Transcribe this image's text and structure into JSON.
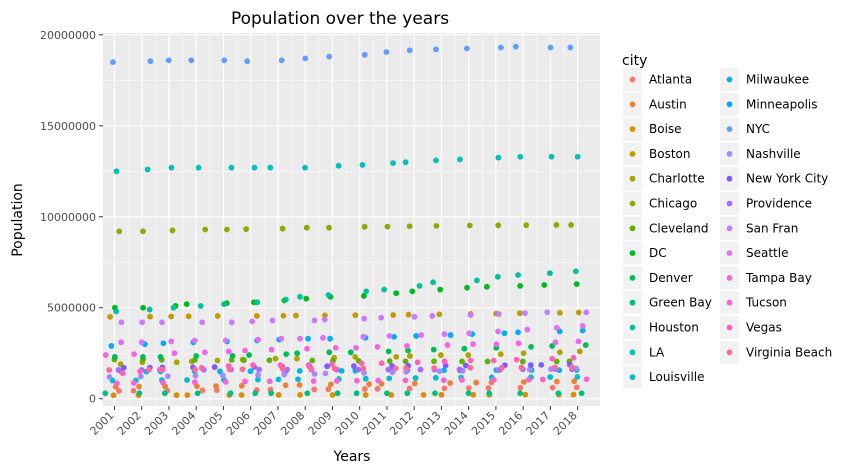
{
  "chart_data": {
    "type": "scatter",
    "title": "Population over the years",
    "xlabel": "Years",
    "ylabel": "Population",
    "legend_title": "city",
    "legend_position": "right",
    "grid": true,
    "background": "#ebebeb",
    "x_ticks": [
      "2001",
      "2002",
      "2003",
      "2004",
      "2005",
      "2006",
      "2007",
      "2008",
      "2009",
      "2010",
      "2011",
      "2012",
      "2013",
      "2014",
      "2015",
      "2016",
      "2017",
      "2018"
    ],
    "y_ticks": [
      {
        "value": 0,
        "label": "0"
      },
      {
        "value": 5000000,
        "label": "5000000"
      },
      {
        "value": 10000000,
        "label": "10000000"
      },
      {
        "value": 15000000,
        "label": "15000000"
      },
      {
        "value": 20000000,
        "label": "20000000"
      }
    ],
    "xlim": [
      2000.58,
      2018.82
    ],
    "ylim": [
      -400000,
      20100000
    ],
    "series": [
      {
        "name": "Atlanta",
        "color": "#F8766D",
        "values": [
          430000,
          440000,
          445000,
          455000,
          470000,
          480000,
          500000,
          510000,
          525000,
          540000,
          545000,
          560000,
          570000,
          580000,
          590000,
          600000,
          610000,
          620000
        ]
      },
      {
        "name": "Austin",
        "color": "#EB8335",
        "values": [
          660000,
          670000,
          680000,
          690000,
          700000,
          710000,
          740000,
          760000,
          790000,
          800000,
          820000,
          840000,
          860000,
          880000,
          900000,
          920000,
          940000,
          960000
        ]
      },
      {
        "name": "Boise",
        "color": "#DA8F00",
        "values": [
          190000,
          193000,
          196000,
          199000,
          202000,
          205000,
          208000,
          211000,
          205000,
          208000,
          210000,
          212000,
          215000,
          218000,
          220000,
          223000,
          226000,
          228000
        ]
      },
      {
        "name": "Boston",
        "color": "#C49A00",
        "values": [
          4500000,
          4510000,
          4520000,
          4530000,
          4540000,
          4550000,
          4560000,
          4570000,
          4580000,
          4590000,
          4600000,
          4620000,
          4640000,
          4660000,
          4680000,
          4700000,
          4720000,
          4740000
        ]
      },
      {
        "name": "Charlotte",
        "color": "#AAA300",
        "values": [
          1900000,
          2000000,
          2000000,
          2050000,
          2100000,
          2150000,
          2200000,
          2200000,
          2250000,
          2300000,
          2300000,
          2350000,
          2400000,
          2400000,
          2450000,
          2500000,
          2550000,
          2600000
        ]
      },
      {
        "name": "Chicago",
        "color": "#8AAB00",
        "values": [
          9200000,
          9200000,
          9250000,
          9300000,
          9300000,
          9320000,
          9350000,
          9400000,
          9400000,
          9450000,
          9460000,
          9480000,
          9500000,
          9520000,
          9530000,
          9540000,
          9550000,
          9550000
        ]
      },
      {
        "name": "Cleveland",
        "color": "#5CB200",
        "values": [
          2150000,
          2150000,
          2140000,
          2130000,
          2130000,
          2120000,
          2110000,
          2100000,
          2090000,
          2080000,
          2070000,
          2060000,
          2060000,
          2050000,
          2050000,
          2050000,
          2050000,
          2050000
        ]
      },
      {
        "name": "DC",
        "color": "#00B81F",
        "values": [
          5000000,
          5000000,
          5100000,
          5200000,
          5250000,
          5300000,
          5400000,
          5500000,
          5600000,
          5650000,
          5800000,
          5900000,
          6000000,
          6100000,
          6150000,
          6200000,
          6250000,
          6300000
        ]
      },
      {
        "name": "Denver",
        "color": "#00BC56",
        "values": [
          2300000,
          2300000,
          2300000,
          2350000,
          2350000,
          2400000,
          2450000,
          2500000,
          2550000,
          2550000,
          2600000,
          2650000,
          2700000,
          2750000,
          2800000,
          2850000,
          2900000,
          2950000
        ]
      },
      {
        "name": "Green Bay",
        "color": "#00BF7D",
        "values": [
          300000,
          300000,
          300000,
          300000,
          300000,
          300000,
          300000,
          300000,
          300000,
          300000,
          300000,
          300000,
          300000,
          300000,
          300000,
          300000,
          300000,
          300000
        ]
      },
      {
        "name": "Houston",
        "color": "#00C19C",
        "values": [
          4800000,
          4900000,
          5000000,
          5100000,
          5200000,
          5300000,
          5450000,
          5600000,
          5700000,
          5900000,
          6000000,
          6200000,
          6400000,
          6500000,
          6700000,
          6800000,
          6900000,
          7000000
        ]
      },
      {
        "name": "LA",
        "color": "#00C0B8",
        "values": [
          12500000,
          12600000,
          12700000,
          12700000,
          12700000,
          12700000,
          12700000,
          12700000,
          12800000,
          12850000,
          12950000,
          13000000,
          13100000,
          13150000,
          13250000,
          13300000,
          13300000,
          13300000
        ]
      },
      {
        "name": "Louisville",
        "color": "#00BDD0",
        "values": [
          1000000,
          1010000,
          1020000,
          1030000,
          1040000,
          1050000,
          1060000,
          1070000,
          1080000,
          1100000,
          1120000,
          1140000,
          1150000,
          1160000,
          1170000,
          1180000,
          1190000,
          1200000
        ]
      },
      {
        "name": "Milwaukee",
        "color": "#00B5E4",
        "values": [
          1500000,
          1490000,
          1500000,
          1510000,
          1500000,
          1510000,
          1520000,
          1530000,
          1530000,
          1540000,
          1550000,
          1550000,
          1560000,
          1560000,
          1570000,
          1570000,
          1570000,
          1580000
        ]
      },
      {
        "name": "Minneapolis",
        "color": "#00ABFA",
        "values": [
          2900000,
          3000000,
          3050000,
          3100000,
          3150000,
          3200000,
          3250000,
          3300000,
          3300000,
          3350000,
          3400000,
          3450000,
          3500000,
          3550000,
          3600000,
          3650000,
          3700000,
          3750000
        ]
      },
      {
        "name": "NYC",
        "color": "#619CFF",
        "values": [
          18500000,
          18550000,
          18600000,
          18600000,
          18600000,
          18550000,
          18600000,
          18700000,
          18800000,
          18900000,
          19050000,
          19150000,
          19200000,
          19250000,
          19300000,
          19350000,
          19300000,
          19300000
        ]
      },
      {
        "name": "Nashville",
        "color": "#A58AFF",
        "values": [
          1200000,
          1220000,
          1240000,
          1260000,
          1280000,
          1300000,
          1330000,
          1360000,
          1390000,
          1420000,
          1450000,
          1480000,
          1510000,
          1540000,
          1570000,
          1600000,
          1630000,
          1660000
        ]
      },
      {
        "name": "New York City",
        "color": "#7A5CFF",
        "values": [
          1700000,
          1710000,
          1720000,
          1730000,
          1740000,
          1750000,
          1760000,
          1770000,
          1780000,
          1790000,
          1800000,
          1810000,
          1820000,
          1830000,
          1840000,
          1850000,
          1860000,
          1870000
        ]
      },
      {
        "name": "Providence",
        "color": "#A96BFF",
        "values": [
          1580000,
          1585000,
          1590000,
          1595000,
          1600000,
          1600000,
          1600000,
          1600000,
          1600000,
          1600000,
          1600000,
          1605000,
          1605000,
          1610000,
          1610000,
          1615000,
          1620000,
          1620000
        ]
      },
      {
        "name": "San Fran",
        "color": "#C77CFF",
        "values": [
          4200000,
          4200000,
          4200000,
          4200000,
          4200000,
          4250000,
          4300000,
          4300000,
          4350000,
          4400000,
          4450000,
          4500000,
          4550000,
          4600000,
          4650000,
          4700000,
          4750000,
          4750000
        ]
      },
      {
        "name": "Seattle",
        "color": "#DF70F8",
        "values": [
          3100000,
          3100000,
          3150000,
          3200000,
          3200000,
          3250000,
          3300000,
          3300000,
          3350000,
          3400000,
          3450000,
          3500000,
          3550000,
          3600000,
          3700000,
          3800000,
          3900000,
          4000000
        ]
      },
      {
        "name": "Tampa Bay",
        "color": "#F066EA",
        "values": [
          2400000,
          2450000,
          2500000,
          2550000,
          2600000,
          2650000,
          2700000,
          2750000,
          2800000,
          2800000,
          2850000,
          2900000,
          2950000,
          3000000,
          3000000,
          3050000,
          3100000,
          3150000
        ]
      },
      {
        "name": "Tucson",
        "color": "#FA62D5",
        "values": [
          850000,
          870000,
          890000,
          910000,
          930000,
          950000,
          960000,
          970000,
          980000,
          990000,
          1000000,
          1010000,
          1020000,
          1030000,
          1040000,
          1050000,
          1060000,
          1070000
        ]
      },
      {
        "name": "Vegas",
        "color": "#FF62BC",
        "values": [
          1400000,
          1500000,
          1600000,
          1700000,
          1800000,
          1850000,
          1850000,
          1850000,
          1900000,
          1950000,
          1950000,
          2000000,
          2050000,
          2100000,
          2100000,
          2150000,
          2200000,
          2250000
        ]
      },
      {
        "name": "Virginia Beach",
        "color": "#FF6A98",
        "values": [
          1580000,
          1590000,
          1600000,
          1600000,
          1610000,
          1620000,
          1630000,
          1640000,
          1650000,
          1660000,
          1670000,
          1680000,
          1690000,
          1700000,
          1710000,
          1720000,
          1720000,
          1730000
        ]
      }
    ]
  }
}
